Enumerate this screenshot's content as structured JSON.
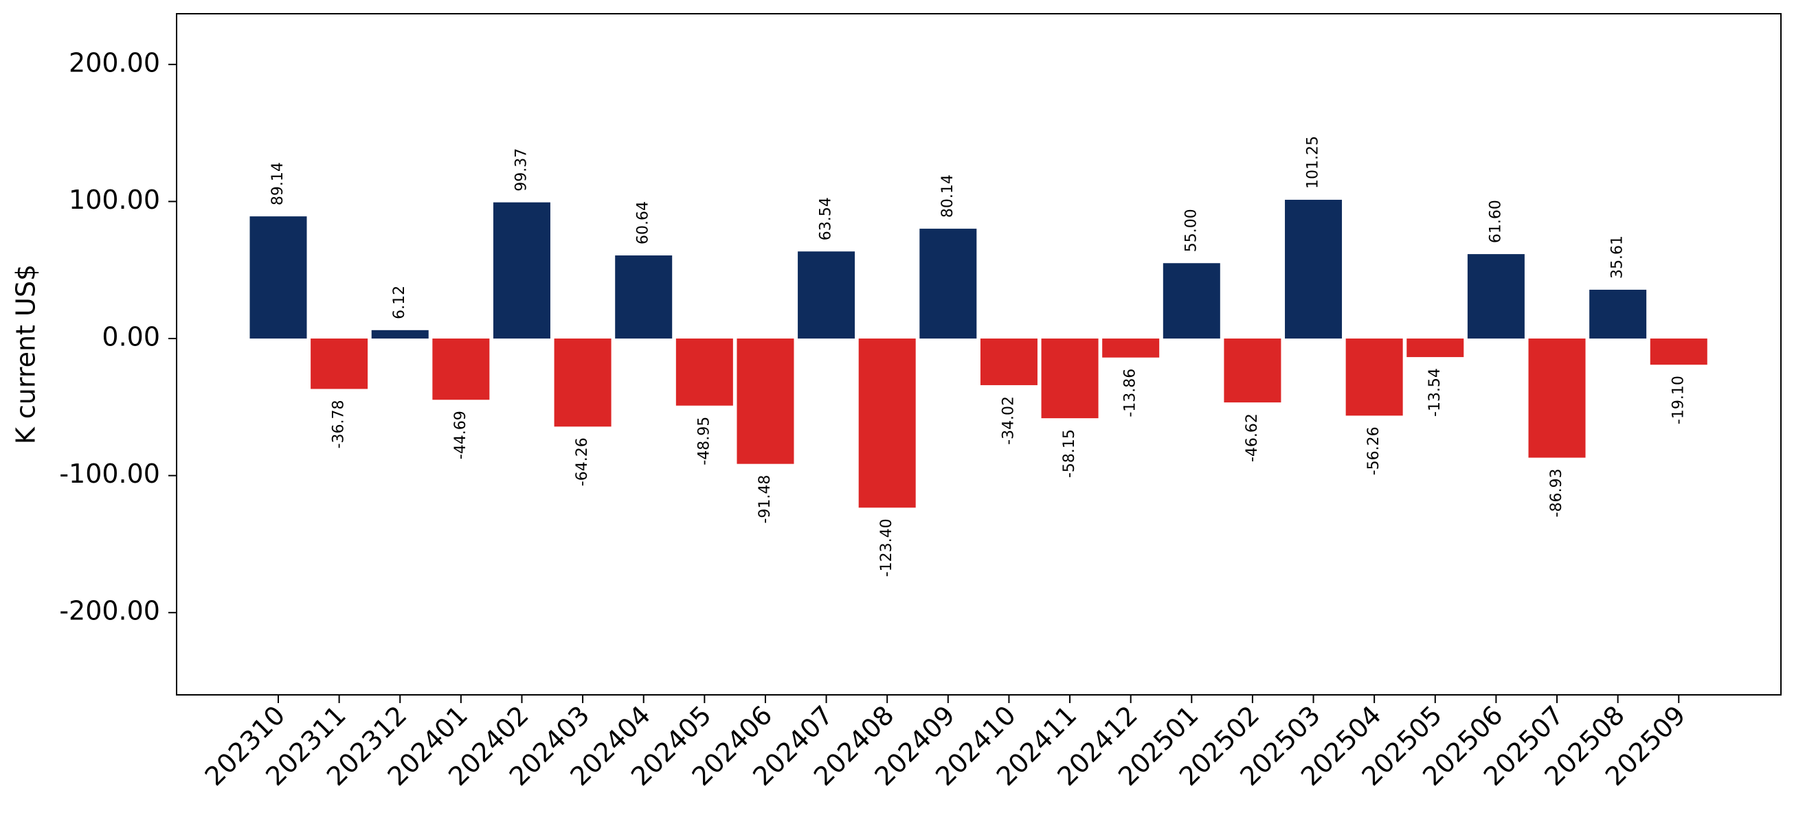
{
  "chart_data": {
    "type": "bar",
    "ylabel": "K current US$",
    "xlabel": "",
    "title": "",
    "ylim": [
      -260,
      237
    ],
    "yticks": [
      -200,
      -100,
      0,
      100,
      200
    ],
    "ytick_labels": [
      "-200.00",
      "-100.00",
      "0.00",
      "100.00",
      "200.00"
    ],
    "categories": [
      "202310",
      "202311",
      "202312",
      "202401",
      "202402",
      "202403",
      "202404",
      "202405",
      "202406",
      "202407",
      "202408",
      "202409",
      "202410",
      "202411",
      "202412",
      "202501",
      "202502",
      "202503",
      "202504",
      "202505",
      "202506",
      "202507",
      "202508",
      "202509"
    ],
    "values": [
      89.14,
      -36.78,
      6.12,
      -44.69,
      99.37,
      -64.26,
      60.64,
      -48.95,
      -91.48,
      63.54,
      -123.4,
      80.14,
      -34.02,
      -58.15,
      -13.86,
      55.0,
      -46.62,
      101.25,
      -56.26,
      -13.54,
      61.6,
      -86.93,
      35.61,
      -19.1
    ],
    "value_labels": [
      "89.14",
      "-36.78",
      "6.12",
      "-44.69",
      "99.37",
      "-64.26",
      "60.64",
      "-48.95",
      "-91.48",
      "63.54",
      "-123.40",
      "80.14",
      "-34.02",
      "-58.15",
      "-13.86",
      "55.00",
      "-46.62",
      "101.25",
      "-56.26",
      "-13.54",
      "61.60",
      "-86.93",
      "35.61",
      "-19.10"
    ],
    "colors": {
      "positive": "#0e2c5d",
      "negative": "#dc2626"
    },
    "grid": false,
    "legend": "none"
  }
}
